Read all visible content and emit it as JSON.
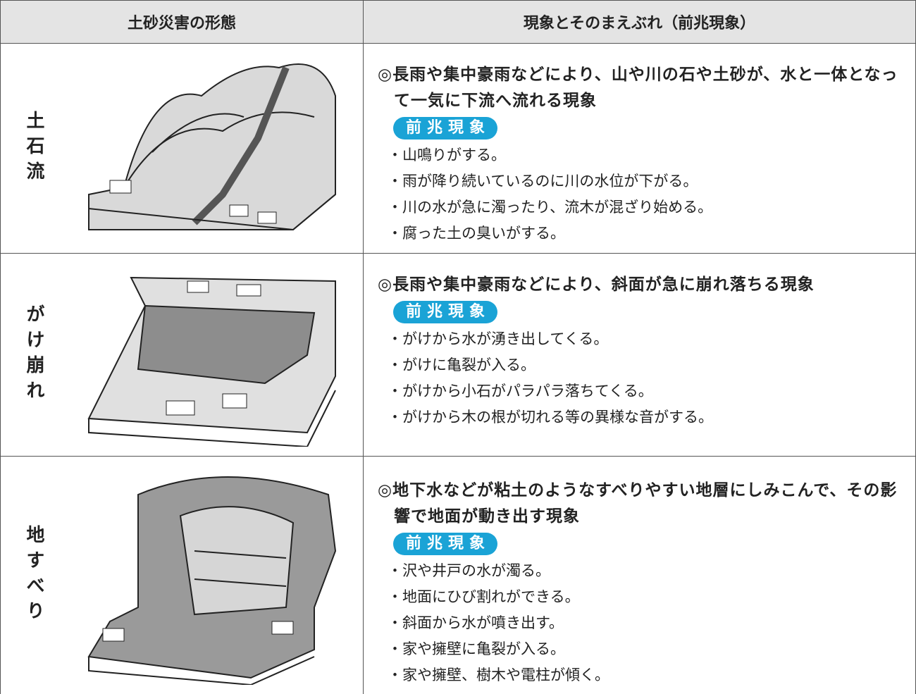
{
  "table": {
    "headers": [
      "土砂災害の形態",
      "現象とそのまえぶれ（前兆現象）"
    ],
    "rows": [
      {
        "name": "土石流",
        "description": "◎長雨や集中豪雨などにより、山や川の石や土砂が、水と一体となって一気に下流へ流れる現象",
        "badge": "前兆現象",
        "signs": [
          "・山鳴りがする。",
          "・雨が降り続いているのに川の水位が下がる。",
          "・川の水が急に濁ったり、流木が混ざり始める。",
          "・腐った土の臭いがする。"
        ]
      },
      {
        "name": "がけ崩れ",
        "description": "◎長雨や集中豪雨などにより、斜面が急に崩れ落ちる現象",
        "badge": "前兆現象",
        "signs": [
          "・がけから水が湧き出してくる。",
          "・がけに亀裂が入る。",
          "・がけから小石がパラパラ落ちてくる。",
          "・がけから木の根が切れる等の異様な音がする。"
        ]
      },
      {
        "name": "地すべり",
        "description": "◎地下水などが粘土のようなすべりやすい地層にしみこんで、その影響で地面が動き出す現象",
        "badge": "前兆現象",
        "signs": [
          "・沢や井戸の水が濁る。",
          "・地面にひび割れができる。",
          "・斜面から水が噴き出す。",
          "・家や擁壁に亀裂が入る。",
          "・家や擁壁、樹木や電柱が傾く。"
        ]
      }
    ]
  }
}
